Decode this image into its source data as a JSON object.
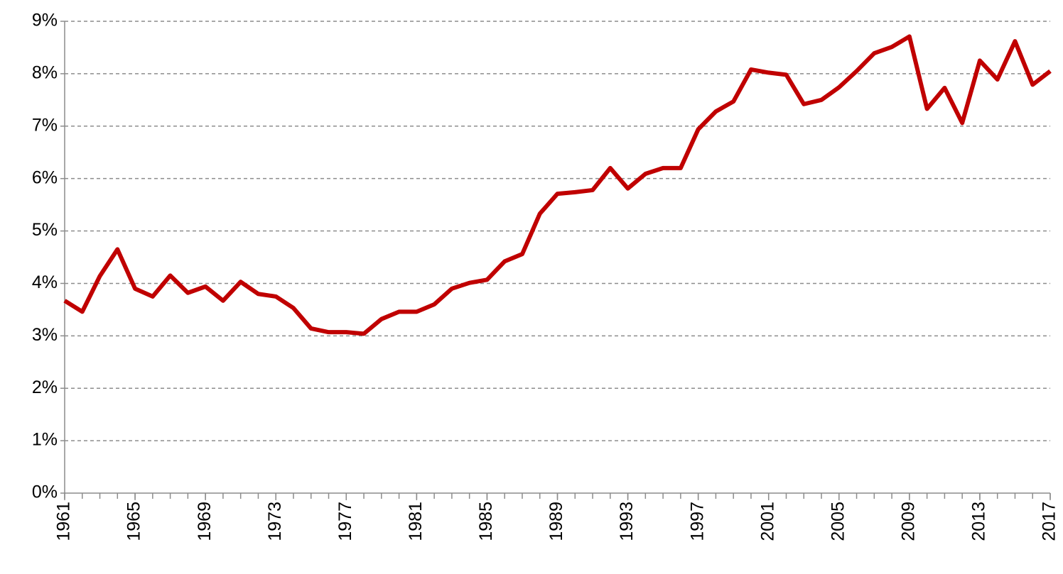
{
  "chart_data": {
    "type": "line",
    "x": [
      1961,
      1962,
      1963,
      1964,
      1965,
      1966,
      1967,
      1968,
      1969,
      1970,
      1971,
      1972,
      1973,
      1974,
      1975,
      1976,
      1977,
      1978,
      1979,
      1980,
      1981,
      1982,
      1983,
      1984,
      1985,
      1986,
      1987,
      1988,
      1989,
      1990,
      1991,
      1992,
      1993,
      1994,
      1995,
      1996,
      1997,
      1998,
      1999,
      2000,
      2001,
      2002,
      2003,
      2004,
      2005,
      2006,
      2007,
      2008,
      2009,
      2010,
      2011,
      2012,
      2013,
      2014,
      2015,
      2016,
      2017
    ],
    "series": [
      {
        "color": "#c00000",
        "values": [
          3.67,
          3.46,
          4.14,
          4.65,
          3.9,
          3.75,
          4.15,
          3.82,
          3.94,
          3.67,
          4.03,
          3.8,
          3.75,
          3.53,
          3.14,
          3.07,
          3.07,
          3.04,
          3.32,
          3.46,
          3.46,
          3.6,
          3.9,
          4.01,
          4.07,
          4.42,
          4.56,
          5.33,
          5.71,
          5.74,
          5.78,
          6.2,
          5.81,
          6.09,
          6.2,
          6.2,
          6.94,
          7.28,
          7.47,
          8.08,
          8.02,
          7.98,
          7.42,
          7.5,
          7.74,
          8.05,
          8.39,
          8.51,
          8.71,
          7.33,
          7.73,
          7.06,
          8.25,
          7.89,
          8.62,
          7.79,
          8.05
        ]
      }
    ],
    "xlim": [
      1961,
      2017
    ],
    "xticks": [
      1961,
      1965,
      1969,
      1973,
      1977,
      1981,
      1985,
      1989,
      1993,
      1997,
      2001,
      2005,
      2009,
      2013,
      2017
    ],
    "ylim": [
      0,
      9
    ],
    "yticks": [
      {
        "value": 0,
        "label": "0%"
      },
      {
        "value": 1,
        "label": "1%"
      },
      {
        "value": 2,
        "label": "2%"
      },
      {
        "value": 3,
        "label": "3%"
      },
      {
        "value": 4,
        "label": "4%"
      },
      {
        "value": 5,
        "label": "5%"
      },
      {
        "value": 6,
        "label": "6%"
      },
      {
        "value": 7,
        "label": "7%"
      },
      {
        "value": 8,
        "label": "8%"
      },
      {
        "value": 9,
        "label": "9%"
      }
    ],
    "grid": true
  }
}
